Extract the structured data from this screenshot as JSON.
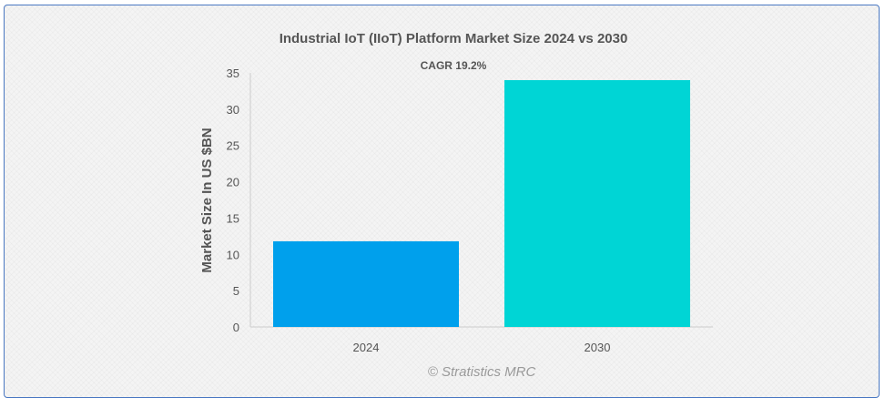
{
  "chart_data": {
    "type": "bar",
    "title": "Industrial IoT (IIoT) Platform Market Size 2024 vs 2030",
    "subtitle": "CAGR 19.2%",
    "categories": [
      "2024",
      "2030"
    ],
    "values": [
      11.8,
      34.0
    ],
    "colors": [
      "#00a0ec",
      "#00d5d5"
    ],
    "ylabel": "Market Size In US $BN",
    "xlabel": "",
    "ylim": [
      0,
      35
    ],
    "yticks": [
      0,
      5,
      10,
      15,
      20,
      25,
      30,
      35
    ],
    "grid": false,
    "legend": "none",
    "credit": "© Stratistics MRC"
  }
}
